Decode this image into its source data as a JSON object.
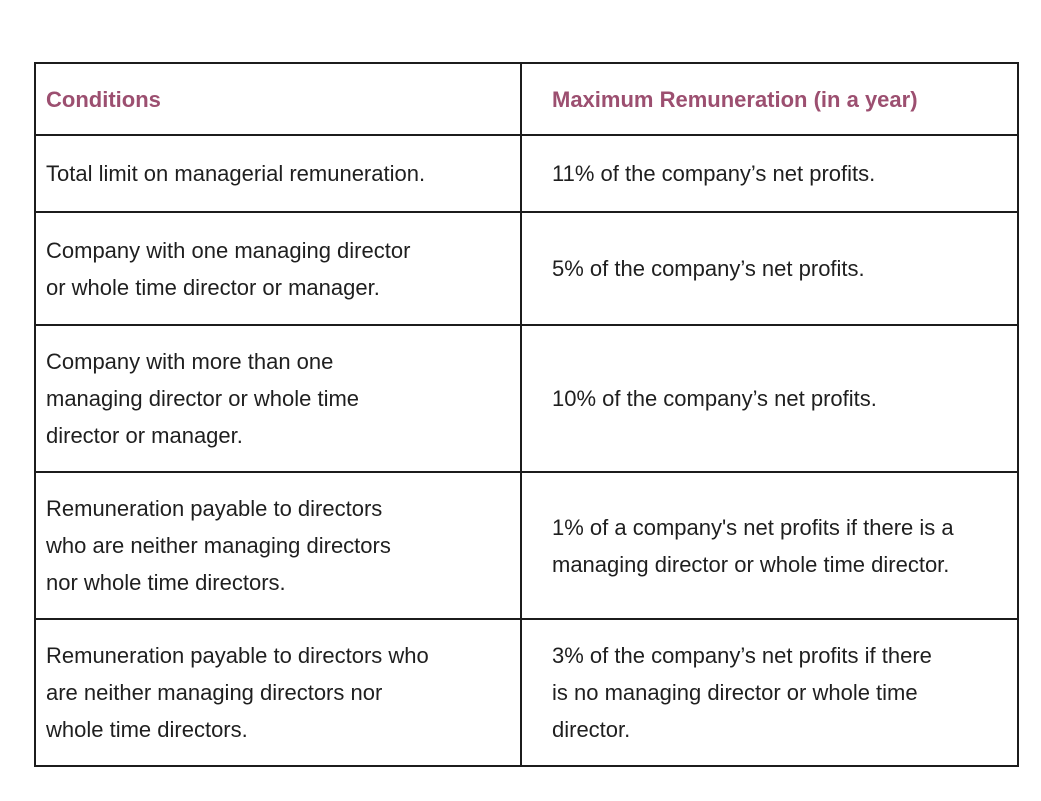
{
  "table": {
    "headers": {
      "conditions": "Conditions",
      "maximum": "Maximum Remuneration (in a year)"
    },
    "rows": [
      {
        "condition": [
          "Total limit on managerial remuneration."
        ],
        "maximum": [
          "11% of the company’s net profits."
        ]
      },
      {
        "condition": [
          "Company with one managing director",
          "or whole time director or manager."
        ],
        "maximum": [
          "5% of the company’s net profits."
        ]
      },
      {
        "condition": [
          "Company with more than one",
          "managing director or whole time",
          "director or manager."
        ],
        "maximum": [
          "10% of the company’s net profits."
        ]
      },
      {
        "condition": [
          "Remuneration payable to directors",
          "who are neither managing directors",
          "nor whole time directors."
        ],
        "maximum": [
          "1% of a company's net profits if there is a",
          "managing director or whole time director."
        ]
      },
      {
        "condition": [
          "Remuneration payable to directors who",
          "are neither managing directors nor",
          "whole time directors."
        ],
        "maximum": [
          "3% of the company’s net profits if there",
          "is no managing director or whole time",
          "director."
        ]
      }
    ]
  }
}
